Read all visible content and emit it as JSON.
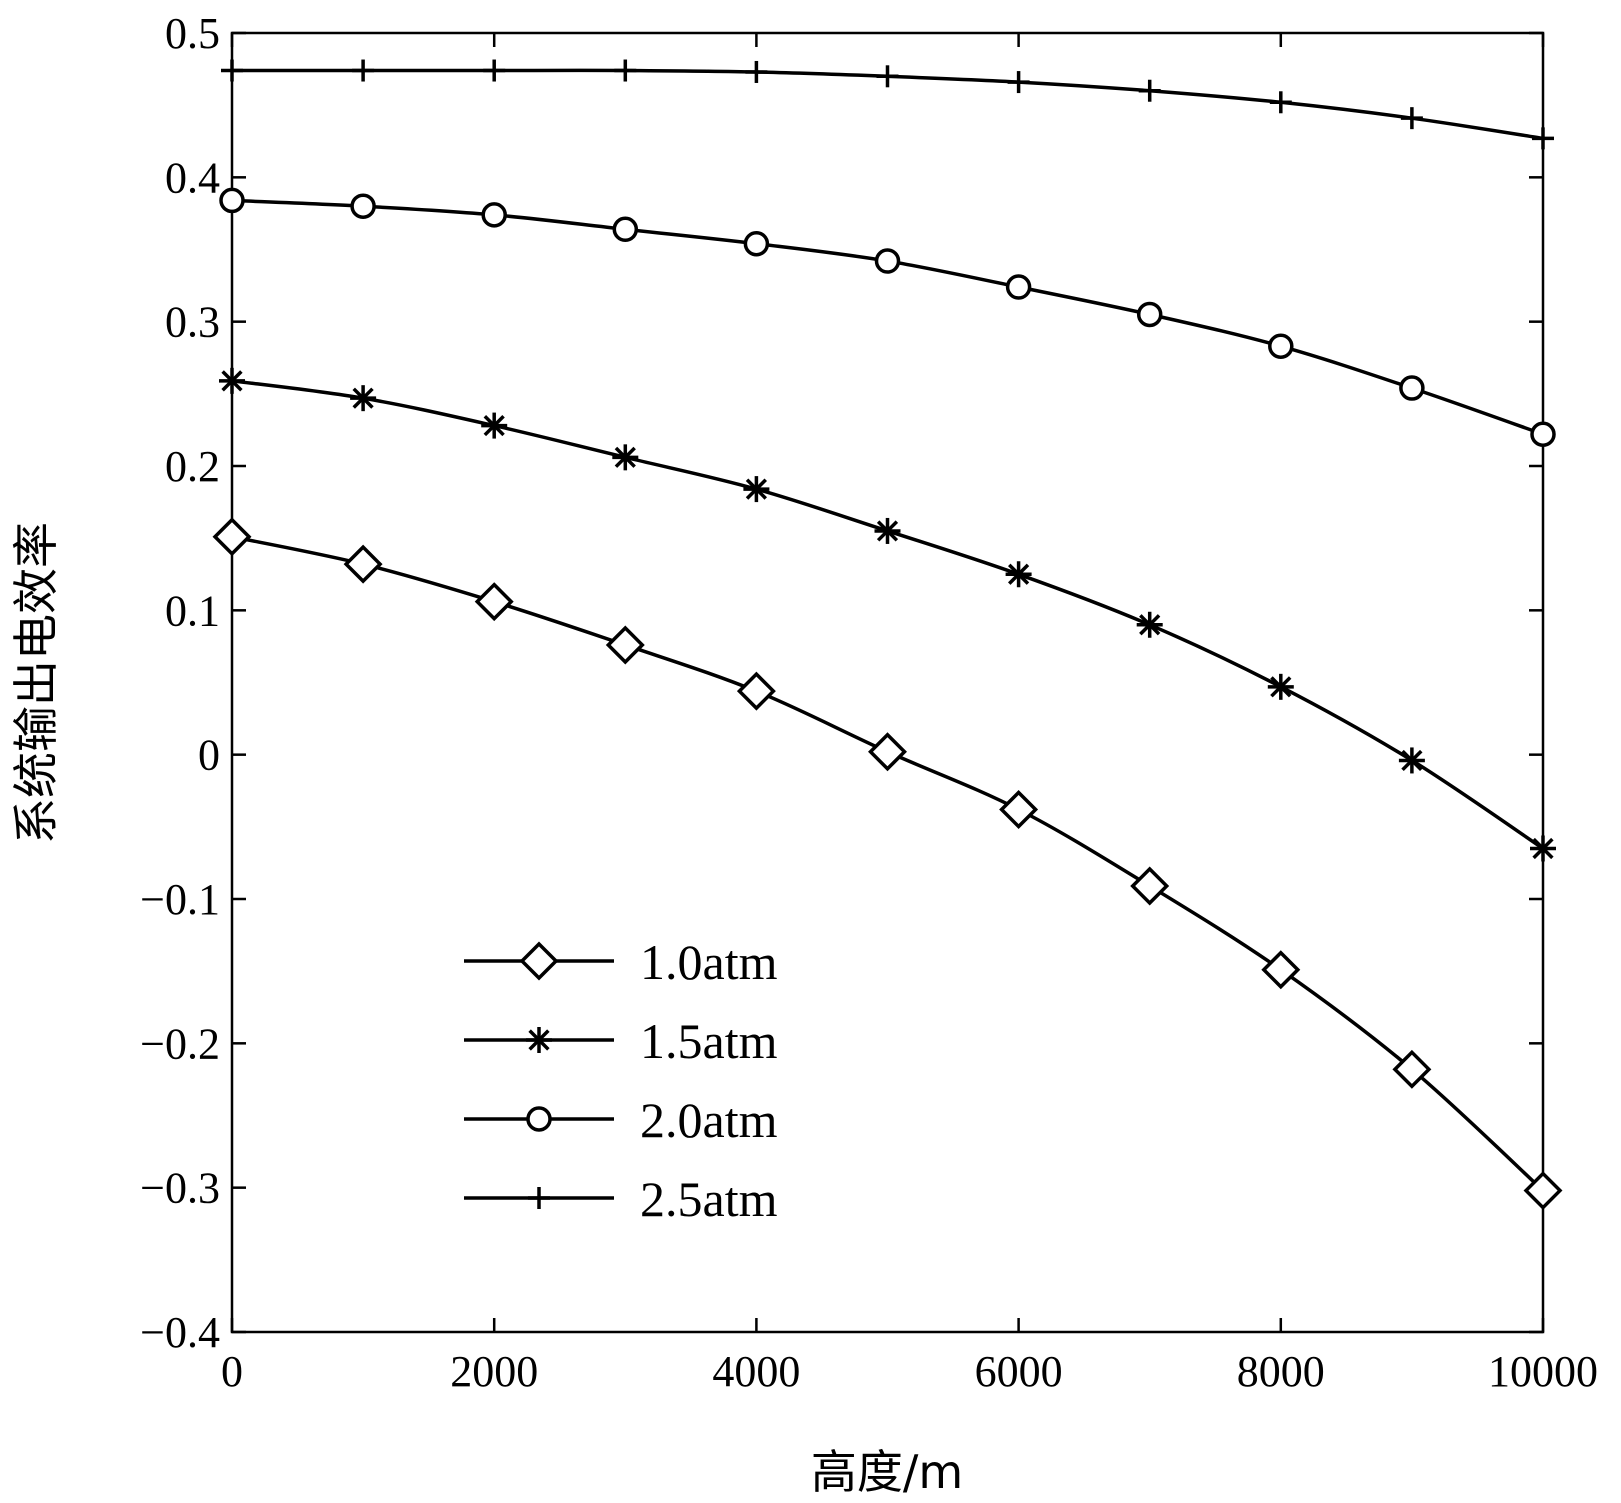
{
  "chart_data": {
    "type": "line",
    "title": "",
    "xlabel": "高度/m",
    "ylabel": "系统输出电效率",
    "xlim": [
      0,
      10000
    ],
    "ylim": [
      -0.4,
      0.5
    ],
    "xticks": [
      0,
      2000,
      4000,
      6000,
      8000,
      10000
    ],
    "xtick_labels": [
      "0",
      "2000",
      "4000",
      "6000",
      "8000",
      "10000"
    ],
    "yticks": [
      -0.4,
      -0.3,
      -0.2,
      -0.1,
      0,
      0.1,
      0.2,
      0.3,
      0.4,
      0.5
    ],
    "ytick_labels": [
      "−0.4",
      "−0.3",
      "−0.2",
      "−0.1",
      "0",
      "0.1",
      "0.2",
      "0.3",
      "0.4",
      "0.5"
    ],
    "grid": false,
    "legend_position": "bottom-left",
    "x": [
      0,
      1000,
      2000,
      3000,
      4000,
      5000,
      6000,
      7000,
      8000,
      9000,
      10000
    ],
    "series": [
      {
        "name": "1.0atm",
        "marker": "diamond",
        "values": [
          0.151,
          0.132,
          0.106,
          0.076,
          0.044,
          0.002,
          -0.038,
          -0.091,
          -0.149,
          -0.218,
          -0.302
        ]
      },
      {
        "name": "1.5atm",
        "marker": "asterisk",
        "values": [
          0.259,
          0.247,
          0.228,
          0.206,
          0.184,
          0.155,
          0.125,
          0.09,
          0.047,
          -0.004,
          -0.065
        ]
      },
      {
        "name": "2.0atm",
        "marker": "circle",
        "values": [
          0.384,
          0.38,
          0.374,
          0.364,
          0.354,
          0.342,
          0.324,
          0.305,
          0.283,
          0.254,
          0.222
        ]
      },
      {
        "name": "2.5atm",
        "marker": "plus",
        "values": [
          0.474,
          0.474,
          0.474,
          0.474,
          0.473,
          0.47,
          0.466,
          0.46,
          0.452,
          0.441,
          0.427
        ]
      }
    ]
  }
}
